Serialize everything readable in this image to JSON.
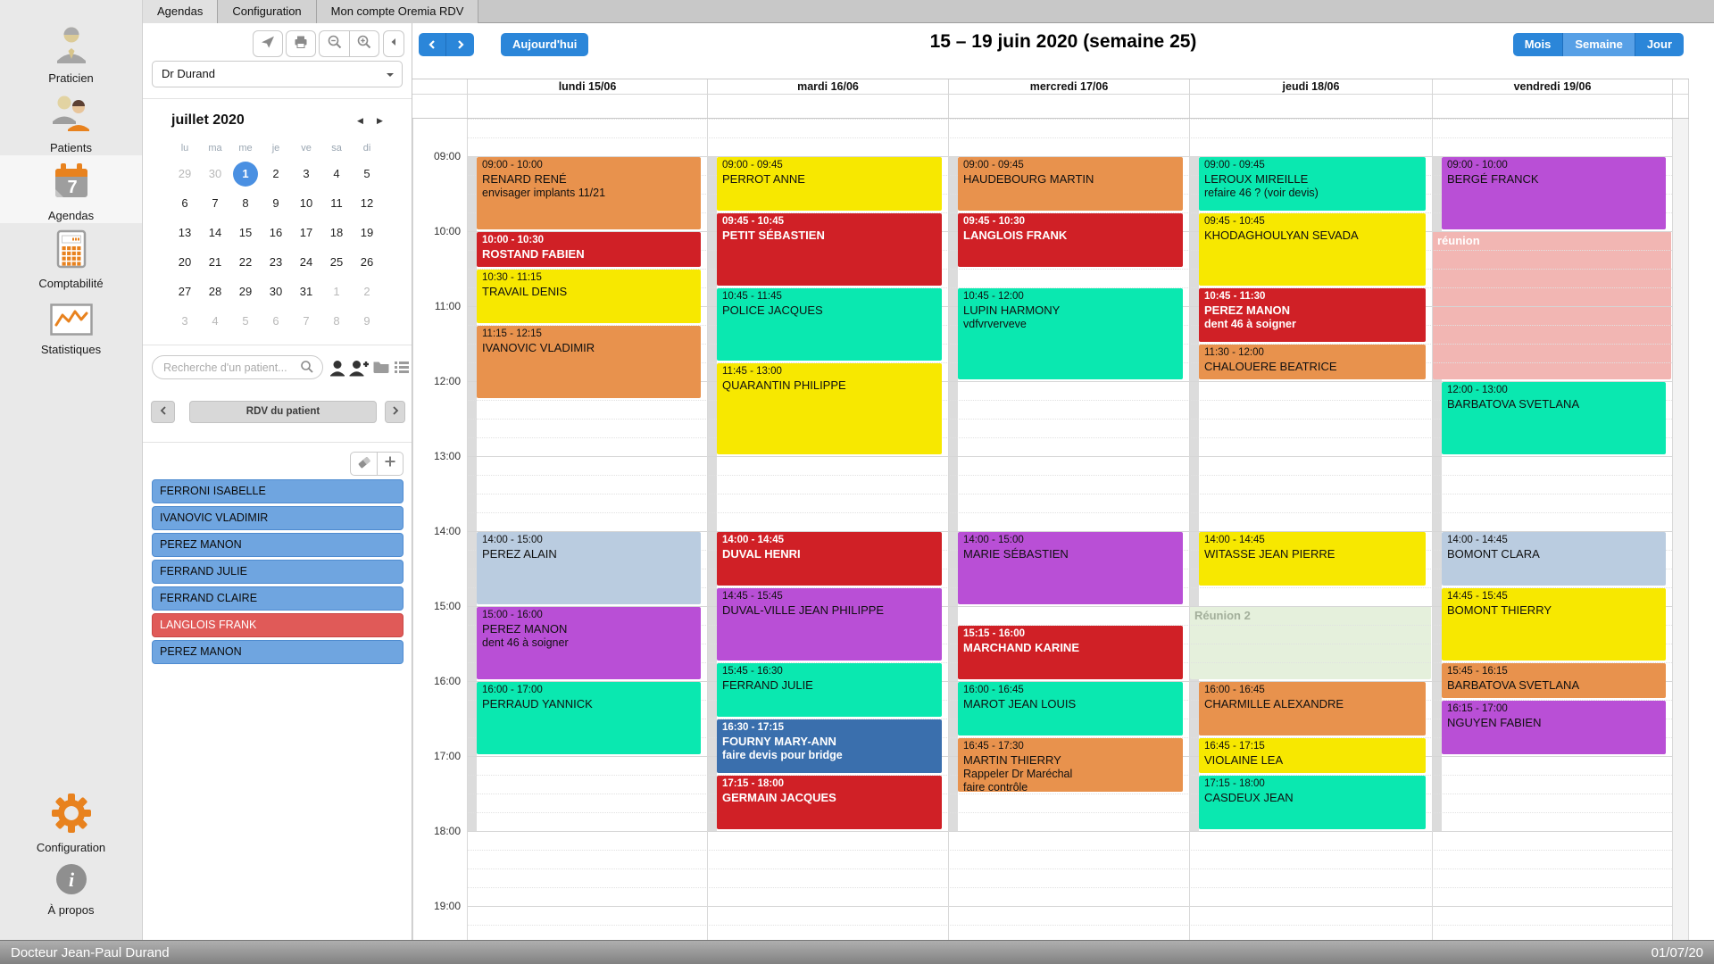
{
  "tabs": [
    {
      "label": "Agendas",
      "active": true
    },
    {
      "label": "Configuration",
      "active": false
    },
    {
      "label": "Mon compte Oremia RDV",
      "active": false
    }
  ],
  "sidebar": {
    "items": [
      {
        "label": "Praticien",
        "icon": "practitioner-icon"
      },
      {
        "label": "Patients",
        "icon": "patients-icon"
      },
      {
        "label": "Agendas",
        "icon": "agenda-calendar-icon",
        "badge": "7",
        "active": true
      },
      {
        "label": "Comptabilité",
        "icon": "calculator-icon"
      },
      {
        "label": "Statistiques",
        "icon": "stats-chart-icon"
      },
      {
        "label": "Configuration",
        "icon": "gear-icon"
      },
      {
        "label": "À propos",
        "icon": "info-icon"
      }
    ]
  },
  "left_panel": {
    "toolbar_icons": [
      "send-icon",
      "print-icon",
      "zoom-out-icon",
      "zoom-in-icon",
      "collapse-panel-icon"
    ],
    "practitioner_select": "Dr Durand",
    "mini_calendar": {
      "title": "juillet 2020",
      "nav_icons": [
        "prev-month-icon",
        "next-month-icon"
      ],
      "dow": [
        "lu",
        "ma",
        "me",
        "je",
        "ve",
        "sa",
        "di"
      ],
      "weeks": [
        [
          {
            "d": "29",
            "o": 1
          },
          {
            "d": "30",
            "o": 1
          },
          {
            "d": "1",
            "t": 1
          },
          {
            "d": "2"
          },
          {
            "d": "3"
          },
          {
            "d": "4"
          },
          {
            "d": "5"
          }
        ],
        [
          {
            "d": "6"
          },
          {
            "d": "7"
          },
          {
            "d": "8"
          },
          {
            "d": "9"
          },
          {
            "d": "10"
          },
          {
            "d": "11"
          },
          {
            "d": "12"
          }
        ],
        [
          {
            "d": "13"
          },
          {
            "d": "14"
          },
          {
            "d": "15"
          },
          {
            "d": "16"
          },
          {
            "d": "17"
          },
          {
            "d": "18"
          },
          {
            "d": "19"
          }
        ],
        [
          {
            "d": "20"
          },
          {
            "d": "21"
          },
          {
            "d": "22"
          },
          {
            "d": "23"
          },
          {
            "d": "24"
          },
          {
            "d": "25"
          },
          {
            "d": "26"
          }
        ],
        [
          {
            "d": "27"
          },
          {
            "d": "28"
          },
          {
            "d": "29"
          },
          {
            "d": "30"
          },
          {
            "d": "31"
          },
          {
            "d": "1",
            "o": 1
          },
          {
            "d": "2",
            "o": 1
          }
        ],
        [
          {
            "d": "3",
            "o": 1
          },
          {
            "d": "4",
            "o": 1
          },
          {
            "d": "5",
            "o": 1
          },
          {
            "d": "6",
            "o": 1
          },
          {
            "d": "7",
            "o": 1
          },
          {
            "d": "8",
            "o": 1
          },
          {
            "d": "9",
            "o": 1
          }
        ]
      ]
    },
    "search_placeholder": "Recherche d'un patient...",
    "search_icons": [
      "search-icon",
      "patient-icon",
      "add-patient-icon",
      "folder-icon",
      "list-icon"
    ],
    "rdv_nav": {
      "label": "RDV du patient",
      "prev_icon": "chevron-left-icon",
      "next_icon": "chevron-right-icon"
    },
    "list_tools": [
      "eraser-icon",
      "add-icon"
    ],
    "patients": [
      {
        "name": "FERRONI ISABELLE"
      },
      {
        "name": "IVANOVIC VLADIMIR"
      },
      {
        "name": "PEREZ MANON"
      },
      {
        "name": "FERRAND JULIE"
      },
      {
        "name": "FERRAND CLAIRE"
      },
      {
        "name": "LANGLOIS FRANK",
        "alert": true
      },
      {
        "name": "PEREZ MANON"
      }
    ]
  },
  "calendar": {
    "today_button": "Aujourd'hui",
    "title": "15 – 19 juin 2020 (semaine 25)",
    "view_buttons": [
      {
        "label": "Mois",
        "active": false
      },
      {
        "label": "Semaine",
        "active": true
      },
      {
        "label": "Jour",
        "active": false
      }
    ],
    "days": [
      "lundi 15/06",
      "mardi 16/06",
      "mercredi 17/06",
      "jeudi 18/06",
      "vendredi 19/06"
    ],
    "time_labels": [
      "09:00",
      "10:00",
      "11:00",
      "12:00",
      "13:00",
      "14:00",
      "15:00",
      "16:00",
      "17:00",
      "18:00",
      "19:00"
    ],
    "colors": {
      "orange": "#E8924D",
      "red": "#D02026",
      "yellow": "#F7E800",
      "turquoise": "#0AE8B0",
      "purple": "#B94FD6",
      "lightblue": "#BACCE0",
      "blue": "#3A6FAD"
    },
    "background_events": [
      {
        "day": 3,
        "start": 15,
        "end": 16,
        "label": "Réunion 2",
        "bg": "#E5F0DC",
        "fg": "#A3AF9B"
      },
      {
        "day": 4,
        "start": 10,
        "end": 12,
        "label": "réunion",
        "bg": "#F2B6B3",
        "fg": "#FFFFFF"
      }
    ],
    "events": [
      {
        "day": 0,
        "start": 9,
        "end": 10,
        "color": "orange",
        "lines": [
          "09:00 - 10:00",
          "RENARD RENÉ",
          "envisager implants 11/21"
        ]
      },
      {
        "day": 0,
        "start": 10,
        "end": 10.5,
        "color": "red",
        "dark": true,
        "lines": [
          "10:00 - 10:30",
          "ROSTAND FABIEN"
        ]
      },
      {
        "day": 0,
        "start": 10.5,
        "end": 11.25,
        "color": "yellow",
        "lines": [
          "10:30 - 11:15",
          "TRAVAIL DENIS"
        ]
      },
      {
        "day": 0,
        "start": 11.25,
        "end": 12.25,
        "color": "orange",
        "lines": [
          "11:15 - 12:15",
          "IVANOVIC VLADIMIR"
        ]
      },
      {
        "day": 0,
        "start": 14,
        "end": 15,
        "color": "lightblue",
        "lines": [
          "14:00 - 15:00",
          "PEREZ ALAIN"
        ]
      },
      {
        "day": 0,
        "start": 15,
        "end": 16,
        "color": "purple",
        "lines": [
          "15:00 - 16:00",
          "PEREZ MANON",
          "dent 46 à soigner"
        ]
      },
      {
        "day": 0,
        "start": 16,
        "end": 17,
        "color": "turquoise",
        "lines": [
          "16:00 - 17:00",
          "PERRAUD YANNICK"
        ]
      },
      {
        "day": 1,
        "start": 9,
        "end": 9.75,
        "color": "yellow",
        "lines": [
          "09:00 - 09:45",
          "PERROT ANNE"
        ]
      },
      {
        "day": 1,
        "start": 9.75,
        "end": 10.75,
        "color": "red",
        "dark": true,
        "lines": [
          "09:45 - 10:45",
          "PETIT SÉBASTIEN"
        ]
      },
      {
        "day": 1,
        "start": 10.75,
        "end": 11.75,
        "color": "turquoise",
        "lines": [
          "10:45 - 11:45",
          "POLICE JACQUES"
        ]
      },
      {
        "day": 1,
        "start": 11.75,
        "end": 13,
        "color": "yellow",
        "lines": [
          "11:45 - 13:00",
          "QUARANTIN PHILIPPE"
        ]
      },
      {
        "day": 1,
        "start": 14,
        "end": 14.75,
        "color": "red",
        "dark": true,
        "lines": [
          "14:00 - 14:45",
          "DUVAL HENRI"
        ]
      },
      {
        "day": 1,
        "start": 14.75,
        "end": 15.75,
        "color": "purple",
        "lines": [
          "14:45 - 15:45",
          "DUVAL-VILLE JEAN PHILIPPE"
        ]
      },
      {
        "day": 1,
        "start": 15.75,
        "end": 16.5,
        "color": "turquoise",
        "lines": [
          "15:45 - 16:30",
          "FERRAND JULIE"
        ]
      },
      {
        "day": 1,
        "start": 16.5,
        "end": 17.25,
        "color": "blue",
        "dark": true,
        "lines": [
          "16:30 - 17:15",
          "FOURNY MARY-ANN",
          "faire devis pour bridge"
        ]
      },
      {
        "day": 1,
        "start": 17.25,
        "end": 18,
        "color": "red",
        "dark": true,
        "lines": [
          "17:15 - 18:00",
          "GERMAIN JACQUES"
        ]
      },
      {
        "day": 2,
        "start": 9,
        "end": 9.75,
        "color": "orange",
        "lines": [
          "09:00 - 09:45",
          "HAUDEBOURG MARTIN"
        ]
      },
      {
        "day": 2,
        "start": 9.75,
        "end": 10.5,
        "color": "red",
        "dark": true,
        "lines": [
          "09:45 - 10:30",
          "LANGLOIS FRANK"
        ]
      },
      {
        "day": 2,
        "start": 10.75,
        "end": 12,
        "color": "turquoise",
        "lines": [
          "10:45 - 12:00",
          "LUPIN HARMONY",
          "vdfvrverveve"
        ]
      },
      {
        "day": 2,
        "start": 14,
        "end": 15,
        "color": "purple",
        "lines": [
          "14:00 - 15:00",
          "MARIE SÉBASTIEN"
        ]
      },
      {
        "day": 2,
        "start": 15.25,
        "end": 16,
        "color": "red",
        "dark": true,
        "lines": [
          "15:15 - 16:00",
          "MARCHAND KARINE"
        ]
      },
      {
        "day": 2,
        "start": 16,
        "end": 16.75,
        "color": "turquoise",
        "lines": [
          "16:00 - 16:45",
          "MAROT JEAN LOUIS"
        ]
      },
      {
        "day": 2,
        "start": 16.75,
        "end": 17.5,
        "color": "orange",
        "lines": [
          "16:45 - 17:30",
          "MARTIN THIERRY",
          "Rappeler Dr Maréchal",
          "faire contrôle"
        ]
      },
      {
        "day": 3,
        "start": 9,
        "end": 9.75,
        "color": "turquoise",
        "lines": [
          "09:00 - 09:45",
          "LEROUX MIREILLE",
          "refaire 46 ? (voir devis)"
        ]
      },
      {
        "day": 3,
        "start": 9.75,
        "end": 10.75,
        "color": "yellow",
        "lines": [
          "09:45 - 10:45",
          "KHODAGHOULYAN SEVADA"
        ]
      },
      {
        "day": 3,
        "start": 10.75,
        "end": 11.5,
        "color": "red",
        "dark": true,
        "lines": [
          "10:45 - 11:30",
          "PEREZ MANON",
          "dent 46 à soigner"
        ]
      },
      {
        "day": 3,
        "start": 11.5,
        "end": 12,
        "color": "orange",
        "lines": [
          "11:30 - 12:00",
          "CHALOUERE BEATRICE"
        ]
      },
      {
        "day": 3,
        "start": 14,
        "end": 14.75,
        "color": "yellow",
        "lines": [
          "14:00 - 14:45",
          "WITASSE JEAN PIERRE"
        ]
      },
      {
        "day": 3,
        "start": 16,
        "end": 16.75,
        "color": "orange",
        "lines": [
          "16:00 - 16:45",
          "CHARMILLE ALEXANDRE"
        ]
      },
      {
        "day": 3,
        "start": 16.75,
        "end": 17.25,
        "color": "yellow",
        "lines": [
          "16:45 - 17:15",
          "VIOLAINE LEA"
        ]
      },
      {
        "day": 3,
        "start": 17.25,
        "end": 18,
        "color": "turquoise",
        "lines": [
          "17:15 - 18:00",
          "CASDEUX JEAN"
        ]
      },
      {
        "day": 4,
        "start": 9,
        "end": 10,
        "color": "purple",
        "lines": [
          "09:00 - 10:00",
          "BERGÉ FRANCK"
        ]
      },
      {
        "day": 4,
        "start": 12,
        "end": 13,
        "color": "turquoise",
        "lines": [
          "12:00 - 13:00",
          "BARBATOVA SVETLANA"
        ]
      },
      {
        "day": 4,
        "start": 14,
        "end": 14.75,
        "color": "lightblue",
        "lines": [
          "14:00 - 14:45",
          "BOMONT CLARA"
        ]
      },
      {
        "day": 4,
        "start": 14.75,
        "end": 15.75,
        "color": "yellow",
        "lines": [
          "14:45 - 15:45",
          "BOMONT THIERRY"
        ]
      },
      {
        "day": 4,
        "start": 15.75,
        "end": 16.25,
        "color": "orange",
        "lines": [
          "15:45 - 16:15",
          "BARBATOVA SVETLANA"
        ]
      },
      {
        "day": 4,
        "start": 16.25,
        "end": 17,
        "color": "purple",
        "lines": [
          "16:15 - 17:00",
          "NGUYEN FABIEN"
        ]
      }
    ]
  },
  "statusbar": {
    "left": "Docteur Jean-Paul Durand",
    "right": "01/07/20"
  }
}
